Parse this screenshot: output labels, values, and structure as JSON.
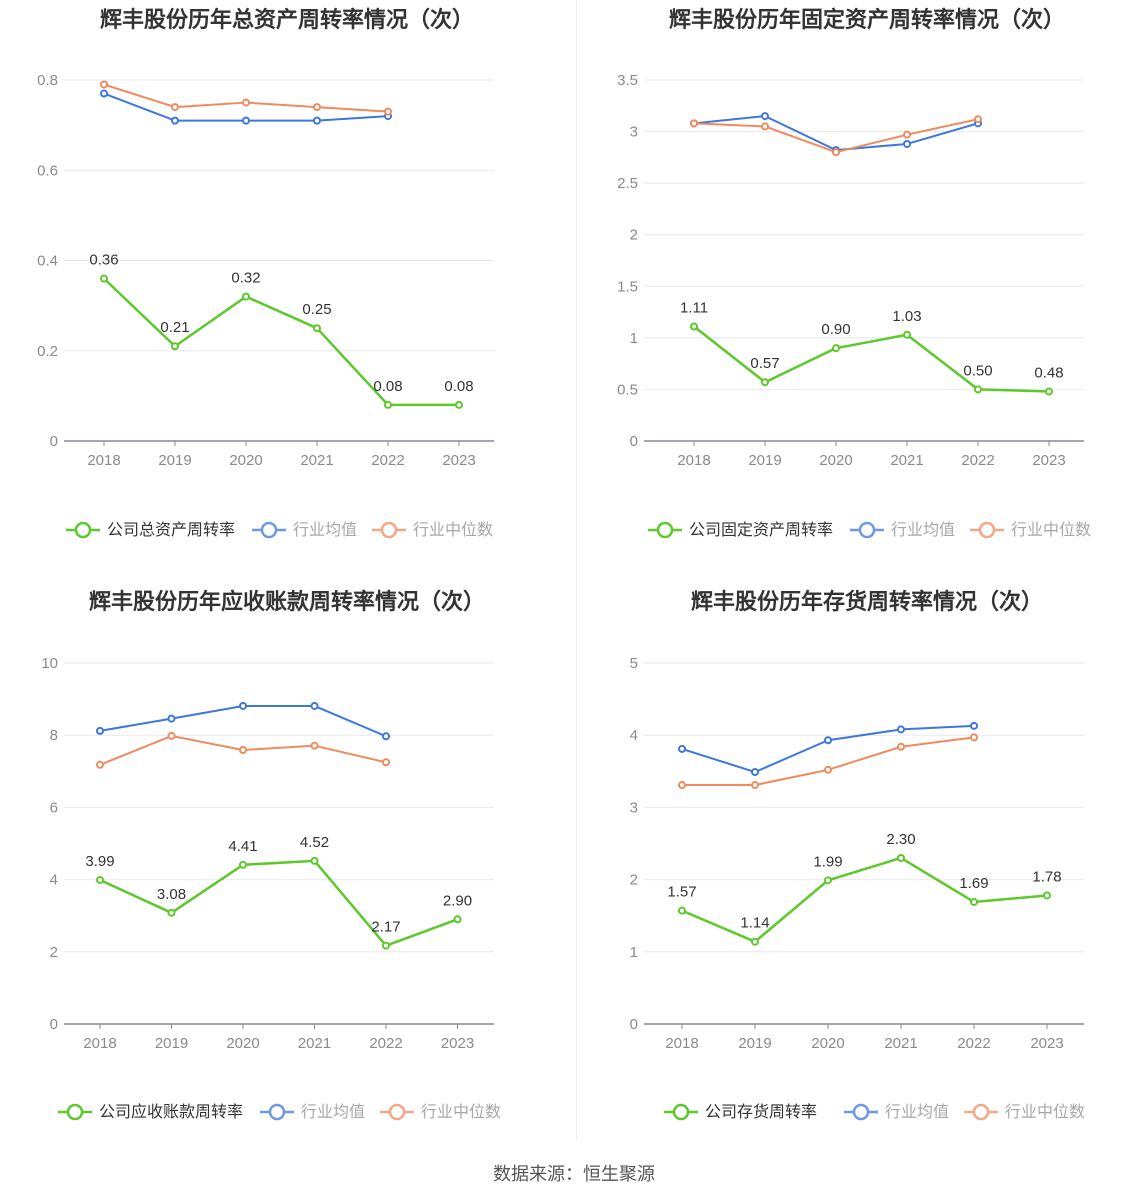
{
  "source_label": "数据来源：恒生聚源",
  "colors": {
    "company": "#5cc92a",
    "avg": "#3d76dd",
    "median": "#f08a5d",
    "grid": "#e8e8ee",
    "axis": "#888896",
    "tick": "#8a8a8a",
    "label": "#333333"
  },
  "chart_data": [
    {
      "type": "line",
      "title": "辉丰股份历年总资产周转率情况（次）",
      "categories": [
        "2018",
        "2019",
        "2020",
        "2021",
        "2022",
        "2023"
      ],
      "ylim": [
        0,
        0.8
      ],
      "yticks": [
        "0",
        "0.2",
        "0.4",
        "0.6",
        "0.8"
      ],
      "ytick_values": [
        0,
        0.2,
        0.4,
        0.6,
        0.8
      ],
      "series": [
        {
          "key": "company",
          "name": "公司总资产周转率",
          "values": [
            0.36,
            0.21,
            0.32,
            0.25,
            0.08,
            0.08
          ],
          "labels": [
            "0.36",
            "0.21",
            "0.32",
            "0.25",
            "0.08",
            "0.08"
          ]
        },
        {
          "key": "avg",
          "name": "行业均值",
          "values": [
            0.77,
            0.71,
            0.71,
            0.71,
            0.72,
            null
          ]
        },
        {
          "key": "median",
          "name": "行业中位数",
          "values": [
            0.79,
            0.74,
            0.75,
            0.74,
            0.73,
            null
          ]
        }
      ]
    },
    {
      "type": "line",
      "title": "辉丰股份历年固定资产周转率情况（次）",
      "categories": [
        "2018",
        "2019",
        "2020",
        "2021",
        "2022",
        "2023"
      ],
      "ylim": [
        0,
        3.5
      ],
      "yticks": [
        "0",
        "0.5",
        "1",
        "1.5",
        "2",
        "2.5",
        "3",
        "3.5"
      ],
      "ytick_values": [
        0,
        0.5,
        1,
        1.5,
        2,
        2.5,
        3,
        3.5
      ],
      "series": [
        {
          "key": "company",
          "name": "公司固定资产周转率",
          "values": [
            1.11,
            0.57,
            0.9,
            1.03,
            0.5,
            0.48
          ],
          "labels": [
            "1.11",
            "0.57",
            "0.90",
            "1.03",
            "0.50",
            "0.48"
          ]
        },
        {
          "key": "avg",
          "name": "行业均值",
          "values": [
            3.08,
            3.15,
            2.82,
            2.88,
            3.08,
            null
          ]
        },
        {
          "key": "median",
          "name": "行业中位数",
          "values": [
            3.08,
            3.05,
            2.8,
            2.97,
            3.12,
            null
          ]
        }
      ]
    },
    {
      "type": "line",
      "title": "辉丰股份历年应收账款周转率情况（次）",
      "categories": [
        "2018",
        "2019",
        "2020",
        "2021",
        "2022",
        "2023"
      ],
      "ylim": [
        0,
        10
      ],
      "yticks": [
        "0",
        "2",
        "4",
        "6",
        "8",
        "10"
      ],
      "ytick_values": [
        0,
        2,
        4,
        6,
        8,
        10
      ],
      "series": [
        {
          "key": "company",
          "name": "公司应收账款周转率",
          "values": [
            3.99,
            3.08,
            4.41,
            4.52,
            2.17,
            2.9
          ],
          "labels": [
            "3.99",
            "3.08",
            "4.41",
            "4.52",
            "2.17",
            "2.90"
          ]
        },
        {
          "key": "avg",
          "name": "行业均值",
          "values": [
            8.12,
            8.46,
            8.81,
            8.81,
            7.97,
            null
          ]
        },
        {
          "key": "median",
          "name": "行业中位数",
          "values": [
            7.18,
            7.98,
            7.59,
            7.71,
            7.25,
            null
          ]
        }
      ]
    },
    {
      "type": "line",
      "title": "辉丰股份历年存货周转率情况（次）",
      "categories": [
        "2018",
        "2019",
        "2020",
        "2021",
        "2022",
        "2023"
      ],
      "ylim": [
        0,
        5
      ],
      "yticks": [
        "0",
        "1",
        "2",
        "3",
        "4",
        "5"
      ],
      "ytick_values": [
        0,
        1,
        2,
        3,
        4,
        5
      ],
      "series": [
        {
          "key": "company",
          "name": "公司存货周转率",
          "values": [
            1.57,
            1.14,
            1.99,
            2.3,
            1.69,
            1.78
          ],
          "labels": [
            "1.57",
            "1.14",
            "1.99",
            "2.30",
            "1.69",
            "1.78"
          ]
        },
        {
          "key": "avg",
          "name": "行业均值",
          "values": [
            3.81,
            3.49,
            3.93,
            4.08,
            4.13,
            null
          ]
        },
        {
          "key": "median",
          "name": "行业中位数",
          "values": [
            3.31,
            3.31,
            3.52,
            3.84,
            3.97,
            null
          ]
        }
      ]
    }
  ]
}
